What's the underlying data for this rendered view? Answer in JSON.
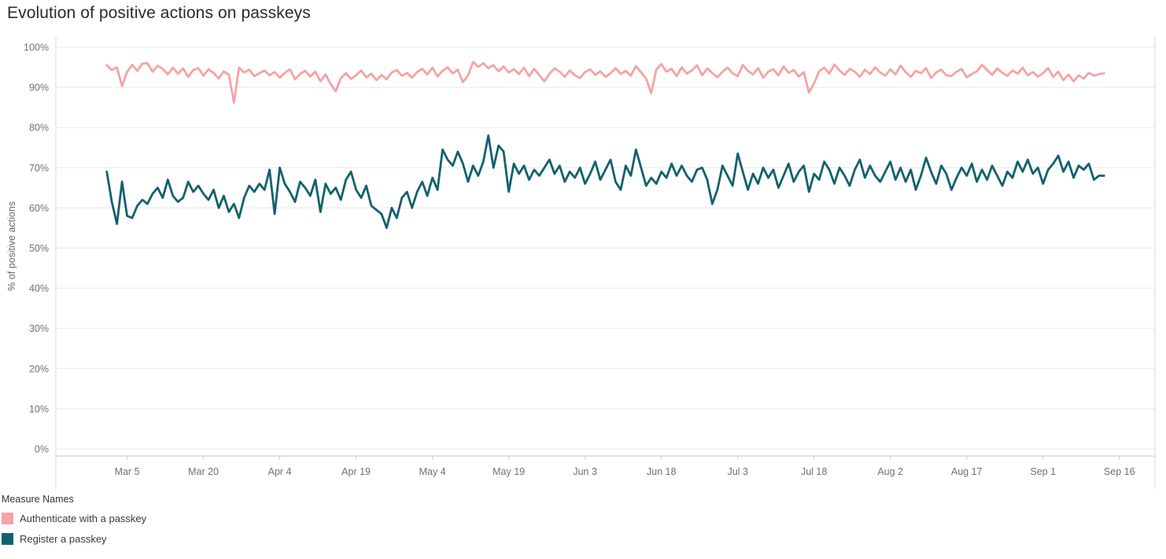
{
  "title": "Evolution of positive actions on passkeys",
  "legend": {
    "title": "Measure Names",
    "items": [
      {
        "label": "Authenticate with a passkey",
        "color": "#F5A3A4"
      },
      {
        "label": "Register a passkey",
        "color": "#11616E"
      }
    ]
  },
  "chart_data": {
    "type": "line",
    "title": "Evolution of positive actions on passkeys",
    "xlabel": "",
    "ylabel": "% of positive actions",
    "ylim": [
      0,
      100
    ],
    "grid": true,
    "legend_position": "bottom-left",
    "y_ticks": [
      0,
      10,
      20,
      30,
      40,
      50,
      60,
      70,
      80,
      90,
      100
    ],
    "y_tick_suffix": "%",
    "x_unit": "day",
    "x_start_label": "Mar 1",
    "x_end_label": "Sep 13",
    "x_domain_days": [
      -10,
      206
    ],
    "x_ticks": [
      {
        "label": "Mar 5",
        "day": 4
      },
      {
        "label": "Mar 20",
        "day": 19
      },
      {
        "label": "Apr 4",
        "day": 34
      },
      {
        "label": "Apr 19",
        "day": 49
      },
      {
        "label": "May 4",
        "day": 64
      },
      {
        "label": "May 19",
        "day": 79
      },
      {
        "label": "Jun 3",
        "day": 94
      },
      {
        "label": "Jun 18",
        "day": 109
      },
      {
        "label": "Jul 3",
        "day": 124
      },
      {
        "label": "Jul 18",
        "day": 139
      },
      {
        "label": "Aug 2",
        "day": 154
      },
      {
        "label": "Aug 17",
        "day": 169
      },
      {
        "label": "Sep 1",
        "day": 184
      },
      {
        "label": "Sep 16",
        "day": 199
      }
    ],
    "series": [
      {
        "id": "authenticate-with-a-passkey",
        "name": "Authenticate with a passkey",
        "color": "#F5A3A4",
        "start_day": 0,
        "values": [
          95.5,
          94.3,
          95.0,
          90.3,
          93.8,
          95.6,
          94.1,
          95.9,
          96.0,
          93.9,
          95.4,
          94.6,
          93.2,
          94.9,
          93.4,
          94.7,
          92.6,
          94.3,
          94.8,
          92.9,
          94.5,
          93.6,
          92.2,
          94.0,
          93.1,
          86.2,
          94.9,
          93.7,
          94.4,
          92.8,
          93.5,
          94.2,
          93.0,
          93.8,
          92.4,
          93.6,
          94.5,
          92.0,
          93.3,
          94.1,
          92.7,
          93.9,
          91.5,
          93.2,
          90.8,
          89.0,
          92.3,
          93.5,
          92.1,
          93.0,
          94.2,
          92.5,
          93.4,
          91.8,
          93.1,
          92.0,
          93.7,
          94.3,
          92.9,
          93.6,
          92.4,
          93.8,
          94.6,
          93.2,
          94.9,
          92.7,
          94.1,
          95.0,
          93.5,
          94.4,
          91.3,
          93.0,
          96.3,
          95.1,
          96.0,
          94.8,
          95.5,
          94.0,
          95.2,
          93.7,
          94.5,
          93.3,
          94.9,
          92.8,
          94.6,
          93.1,
          91.5,
          93.4,
          94.7,
          93.9,
          92.6,
          94.2,
          93.0,
          92.3,
          93.8,
          94.5,
          93.1,
          94.0,
          92.6,
          93.5,
          94.8,
          93.3,
          94.1,
          92.9,
          95.3,
          93.7,
          92.2,
          88.6,
          94.4,
          95.8,
          93.9,
          94.6,
          92.8,
          95.0,
          93.4,
          94.2,
          95.5,
          93.0,
          94.7,
          93.6,
          92.5,
          93.9,
          94.9,
          93.5,
          92.8,
          95.6,
          94.1,
          93.2,
          94.8,
          92.4,
          93.9,
          94.5,
          93.0,
          95.2,
          93.6,
          94.3,
          92.7,
          93.8,
          88.7,
          91.0,
          94.0,
          94.9,
          93.4,
          95.7,
          94.2,
          93.1,
          94.6,
          93.9,
          92.6,
          94.4,
          93.3,
          95.0,
          93.7,
          92.9,
          94.5,
          93.2,
          95.4,
          93.8,
          92.6,
          94.1,
          93.5,
          94.8,
          92.3,
          93.7,
          94.4,
          93.0,
          92.8,
          93.9,
          94.6,
          92.5,
          93.3,
          94.0,
          95.6,
          94.3,
          93.1,
          94.7,
          93.6,
          92.9,
          94.2,
          93.4,
          94.9,
          93.0,
          93.8,
          92.7,
          93.5,
          94.8,
          92.6,
          93.9,
          91.8,
          93.2,
          91.5,
          93.0,
          92.2,
          93.6,
          92.9,
          93.3,
          93.5
        ]
      },
      {
        "id": "register-a-passkey",
        "name": "Register a passkey",
        "color": "#11616E",
        "start_day": 0,
        "values": [
          69.0,
          61.5,
          56.0,
          66.5,
          58.0,
          57.5,
          60.5,
          62.0,
          61.0,
          63.5,
          65.0,
          62.5,
          67.0,
          63.0,
          61.5,
          62.5,
          66.5,
          64.0,
          65.5,
          63.5,
          62.0,
          64.5,
          60.0,
          63.0,
          59.0,
          61.0,
          57.5,
          62.5,
          65.5,
          64.0,
          66.0,
          64.5,
          69.5,
          58.5,
          70.0,
          66.0,
          64.0,
          61.5,
          66.5,
          65.0,
          63.0,
          67.0,
          59.0,
          66.0,
          63.5,
          65.0,
          62.0,
          67.0,
          69.0,
          64.5,
          62.5,
          65.5,
          60.5,
          59.5,
          58.5,
          55.0,
          60.0,
          57.5,
          62.5,
          64.0,
          60.0,
          64.0,
          66.5,
          63.0,
          67.5,
          64.5,
          74.5,
          72.0,
          70.5,
          74.0,
          71.0,
          66.5,
          70.5,
          68.0,
          71.5,
          78.0,
          70.0,
          75.5,
          74.0,
          64.0,
          71.0,
          68.5,
          70.5,
          67.0,
          69.5,
          68.0,
          70.0,
          72.0,
          68.5,
          70.5,
          66.5,
          69.0,
          67.5,
          70.0,
          66.0,
          68.5,
          71.5,
          67.0,
          69.5,
          72.0,
          66.5,
          64.5,
          70.5,
          68.0,
          74.5,
          70.0,
          65.5,
          67.5,
          66.0,
          69.0,
          67.5,
          71.0,
          68.0,
          70.5,
          68.0,
          66.5,
          69.5,
          70.0,
          67.0,
          61.0,
          64.5,
          70.5,
          68.0,
          65.5,
          73.5,
          69.0,
          64.5,
          68.5,
          66.0,
          70.0,
          67.5,
          69.5,
          65.0,
          68.0,
          71.0,
          66.5,
          69.0,
          70.5,
          64.0,
          68.5,
          67.0,
          71.5,
          69.5,
          66.0,
          70.0,
          68.0,
          65.5,
          69.5,
          72.0,
          67.5,
          70.5,
          68.0,
          66.5,
          69.0,
          71.5,
          67.0,
          70.0,
          66.5,
          69.5,
          64.5,
          68.0,
          72.5,
          69.0,
          66.0,
          70.5,
          68.5,
          64.5,
          67.5,
          70.0,
          68.0,
          71.0,
          66.5,
          69.5,
          67.0,
          70.5,
          68.0,
          65.5,
          69.0,
          67.5,
          71.5,
          69.0,
          72.0,
          68.5,
          70.0,
          66.0,
          69.5,
          71.0,
          73.0,
          69.0,
          71.5,
          67.5,
          70.5,
          69.5,
          71.0,
          67.0,
          68.0,
          68.0
        ]
      }
    ]
  }
}
